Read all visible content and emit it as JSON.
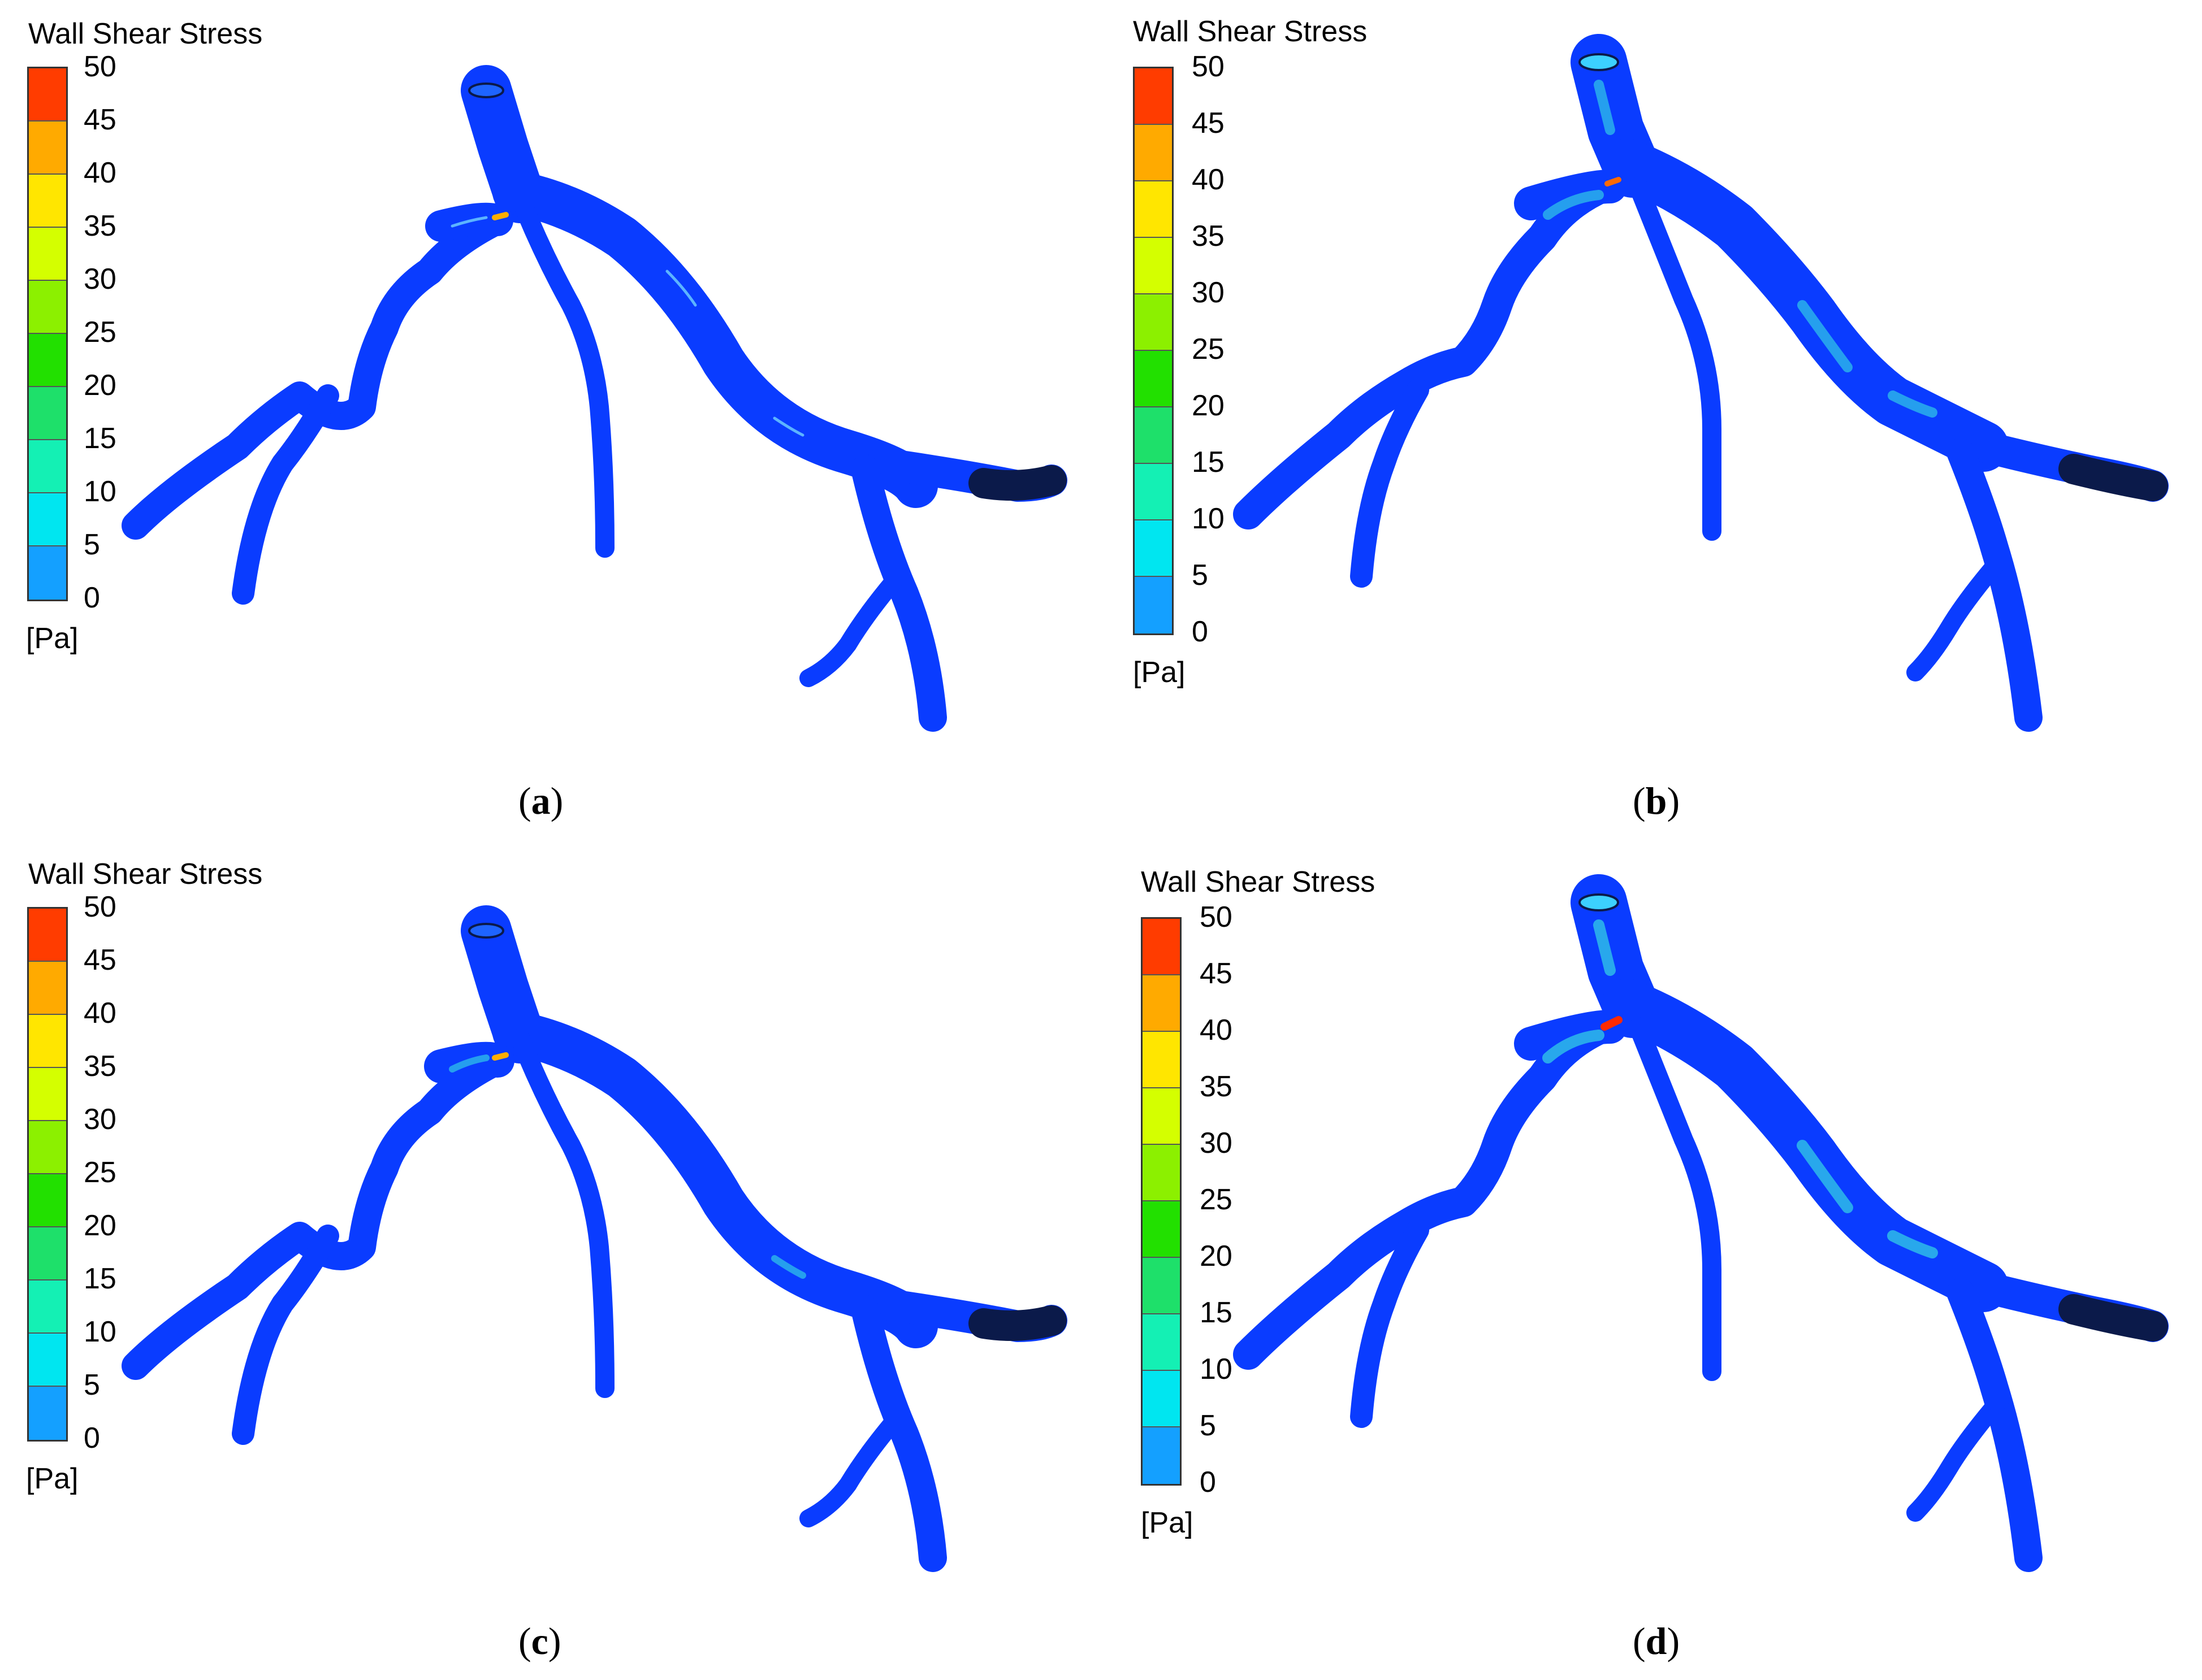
{
  "legend": {
    "title": "Wall Shear Stress",
    "unit": "[Pa]",
    "ticks": [
      "50",
      "45",
      "40",
      "35",
      "30",
      "25",
      "20",
      "15",
      "10",
      "5",
      "0"
    ],
    "colors": [
      "#ff3c00",
      "#ffaa00",
      "#ffe600",
      "#d4ff00",
      "#8cf000",
      "#22e000",
      "#1ee06a",
      "#14f0b4",
      "#00e6f0",
      "#14a0ff",
      "#0a3cff"
    ]
  },
  "panels": [
    {
      "id": "a",
      "caption_letter": "a"
    },
    {
      "id": "b",
      "caption_letter": "b"
    },
    {
      "id": "c",
      "caption_letter": "c"
    },
    {
      "id": "d",
      "caption_letter": "d"
    }
  ],
  "colors": {
    "vessel": "#0a3cff",
    "vessel_dark": "#0b1a4a",
    "highlight": "#7fe7ff",
    "hot": "#ff2a00"
  }
}
